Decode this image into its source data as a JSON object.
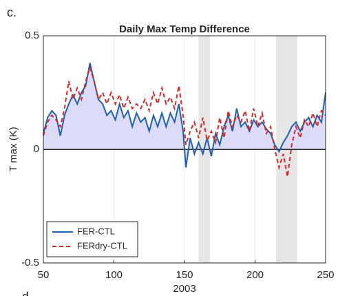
{
  "chart_data": {
    "type": "line",
    "panel_label": "c.",
    "next_panel_label": "d",
    "title": "Daily Max Temp Difference",
    "xlabel": "2003",
    "ylabel": "T max (K)",
    "x": [
      50,
      53,
      56,
      59,
      62,
      65,
      68,
      71,
      74,
      77,
      80,
      83,
      86,
      89,
      92,
      95,
      98,
      101,
      104,
      107,
      110,
      113,
      116,
      119,
      122,
      125,
      128,
      131,
      134,
      137,
      140,
      143,
      146,
      149,
      151,
      154,
      157,
      160,
      163,
      166,
      169,
      172,
      175,
      178,
      181,
      184,
      187,
      190,
      193,
      196,
      199,
      202,
      205,
      208,
      211,
      214,
      217,
      220,
      223,
      226,
      229,
      232,
      235,
      238,
      241,
      244,
      247,
      250
    ],
    "series": [
      {
        "name": "FER-CTL",
        "color": "#1f5fae",
        "dash": false,
        "fill": "#dcdcf8",
        "values": [
          0.07,
          0.14,
          0.17,
          0.15,
          0.06,
          0.15,
          0.2,
          0.24,
          0.2,
          0.25,
          0.28,
          0.38,
          0.3,
          0.22,
          0.2,
          0.15,
          0.17,
          0.13,
          0.2,
          0.14,
          0.17,
          0.1,
          0.16,
          0.12,
          0.14,
          0.08,
          0.15,
          0.1,
          0.16,
          0.1,
          0.16,
          0.12,
          0.2,
          0.08,
          -0.08,
          0.05,
          -0.02,
          0.03,
          -0.02,
          0.05,
          -0.03,
          0.07,
          0.02,
          0.1,
          0.15,
          0.08,
          0.18,
          0.1,
          0.12,
          0.08,
          0.13,
          0.1,
          0.12,
          0.09,
          0.07,
          0.02,
          -0.01,
          0.03,
          0.06,
          0.1,
          0.12,
          0.08,
          0.12,
          0.14,
          0.1,
          0.15,
          0.12,
          0.25
        ]
      },
      {
        "name": "FERdry-CTL",
        "color": "#d62728",
        "dash": true,
        "values": [
          0.06,
          0.12,
          0.15,
          0.13,
          0.1,
          0.18,
          0.3,
          0.22,
          0.27,
          0.22,
          0.3,
          0.36,
          0.3,
          0.22,
          0.25,
          0.2,
          0.25,
          0.2,
          0.24,
          0.18,
          0.23,
          0.18,
          0.2,
          0.18,
          0.22,
          0.17,
          0.25,
          0.2,
          0.27,
          0.2,
          0.23,
          0.18,
          0.28,
          0.15,
          0.02,
          0.08,
          0.12,
          0.05,
          0.14,
          0.04,
          0.08,
          0.03,
          0.14,
          0.05,
          0.17,
          0.1,
          0.15,
          0.12,
          0.17,
          0.08,
          0.18,
          0.1,
          0.16,
          0.07,
          0.1,
          0.0,
          -0.08,
          -0.02,
          -0.12,
          0.02,
          0.1,
          0.05,
          0.13,
          0.1,
          0.16,
          0.1,
          0.17,
          0.15
        ]
      }
    ],
    "shaded_regions": [
      [
        160,
        168
      ],
      [
        215,
        230
      ]
    ],
    "xlim": [
      50,
      250
    ],
    "xticks": [
      50,
      100,
      150,
      200,
      250
    ],
    "ylim": [
      -0.5,
      0.5
    ],
    "yticks": [
      -0.5,
      0,
      0.5
    ],
    "xgrid": true,
    "zero_line": true,
    "legend": "lower left"
  }
}
